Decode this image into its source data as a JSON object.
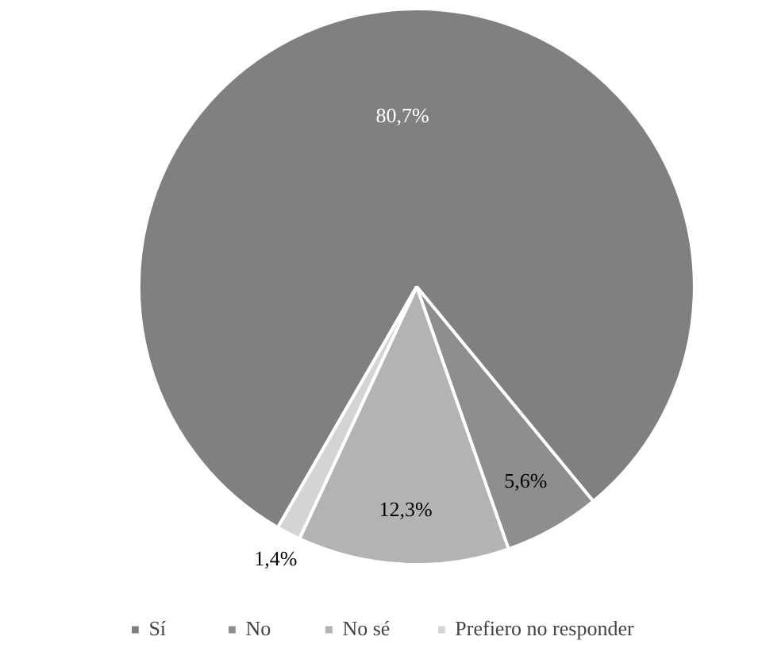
{
  "chart_data": {
    "type": "pie",
    "categories": [
      "Sí",
      "No",
      "No sé",
      "Prefiero no responder"
    ],
    "values": [
      80.7,
      5.6,
      12.3,
      1.4
    ],
    "colors": [
      "#808080",
      "#8e8e8e",
      "#b3b3b3",
      "#d4d4d4"
    ],
    "value_labels": [
      "80,7%",
      "5,6%",
      "12,3%",
      "1,4%"
    ],
    "legend": "bottom"
  }
}
